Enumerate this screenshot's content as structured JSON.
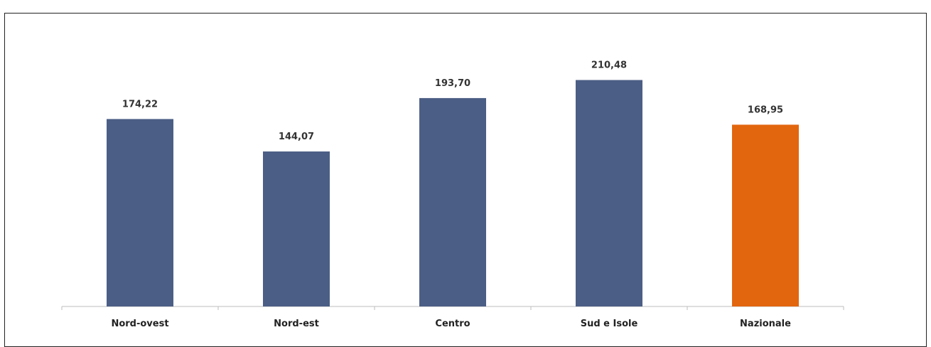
{
  "chart_data": {
    "type": "bar",
    "categories": [
      "Nord-ovest",
      "Nord-est",
      "Centro",
      "Sud e Isole",
      "Nazionale"
    ],
    "values": [
      174.22,
      144.07,
      193.7,
      210.48,
      168.95
    ],
    "value_labels": [
      "174,22",
      "144,07",
      "193,70",
      "210,48",
      "168,95"
    ],
    "colors": [
      "#4b5e85",
      "#4b5e85",
      "#4b5e85",
      "#4b5e85",
      "#e2660e"
    ],
    "ylim": [
      0,
      230
    ],
    "grid": false,
    "legend": "none"
  }
}
